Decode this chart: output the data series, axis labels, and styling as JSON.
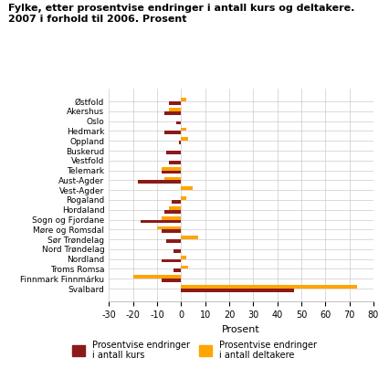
{
  "title": "Fylke, etter prosentvise endringer i antall kurs og deltakere.\n2007 i forhold til 2006. Prosent",
  "categories": [
    "Østfold",
    "Akershus",
    "Oslo",
    "Hedmark",
    "Oppland",
    "Buskerud",
    "Vestfold",
    "Telemark",
    "Aust-Agder",
    "Vest-Agder",
    "Rogaland",
    "Hordaland",
    "Sogn og Fjordane",
    "Møre og Romsdal",
    "Sør Trøndelag",
    "Nord Trøndelag",
    "Nordland",
    "Troms Romsa",
    "Finnmark Finnmárku",
    "Svalbard"
  ],
  "kurs": [
    -5,
    -7,
    -2,
    -7,
    -1,
    -6,
    -5,
    -8,
    -18,
    0,
    -4,
    -7,
    -17,
    -8,
    -6,
    -3,
    -8,
    -3,
    -8,
    47
  ],
  "deltakere": [
    2,
    -5,
    0,
    2,
    3,
    0,
    0,
    -8,
    -7,
    5,
    2,
    -5,
    -8,
    -10,
    7,
    0,
    2,
    3,
    -20,
    73
  ],
  "color_kurs": "#8B1A1A",
  "color_deltakere": "#FFA500",
  "xlabel": "Prosent",
  "xlim": [
    -30,
    80
  ],
  "xticks": [
    -30,
    -20,
    -10,
    0,
    10,
    20,
    30,
    40,
    50,
    60,
    70,
    80
  ],
  "legend_kurs": "Prosentvise endringer\ni antall kurs",
  "legend_deltakere": "Prosentvise endringer\ni antall deltakere",
  "background_color": "#ffffff",
  "grid_color": "#cccccc"
}
